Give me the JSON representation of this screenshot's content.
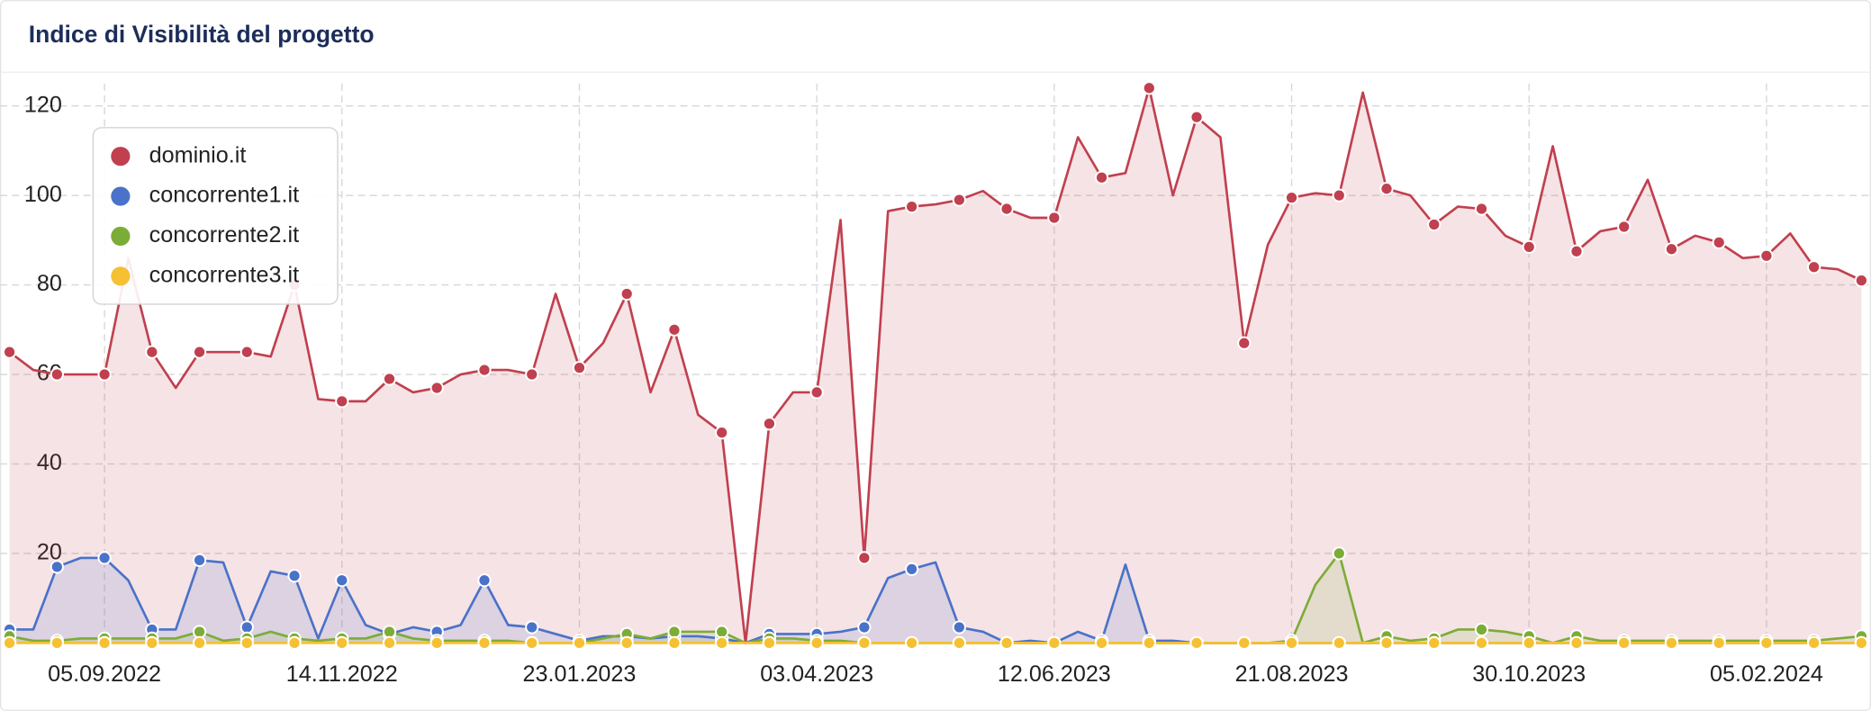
{
  "chart_data": {
    "type": "area-line",
    "title": "Indice di Visibilità del progetto",
    "categories": [
      null,
      null,
      null,
      null,
      "05.09.2022",
      null,
      null,
      null,
      null,
      null,
      null,
      null,
      null,
      null,
      "14.11.2022",
      null,
      null,
      null,
      null,
      null,
      null,
      null,
      null,
      null,
      "23.01.2023",
      null,
      null,
      null,
      null,
      null,
      null,
      null,
      null,
      null,
      "03.04.2023",
      null,
      null,
      null,
      null,
      null,
      null,
      null,
      null,
      null,
      "12.06.2023",
      null,
      null,
      null,
      null,
      null,
      null,
      null,
      null,
      null,
      "21.08.2023",
      null,
      null,
      null,
      null,
      null,
      null,
      null,
      null,
      null,
      "30.10.2023",
      null,
      null,
      null,
      null,
      null,
      null,
      null,
      null,
      null,
      "05.02.2024",
      null,
      null,
      null,
      null
    ],
    "series": [
      {
        "name": "dominio.it",
        "color": "#c0404f",
        "values": [
          65,
          61,
          60,
          60,
          60,
          86,
          65,
          57,
          65,
          65,
          65,
          64,
          80,
          54.5,
          54,
          54,
          59,
          56,
          57,
          60,
          61,
          61,
          60,
          78,
          61.5,
          67,
          78,
          56,
          70,
          51,
          47,
          0,
          49,
          56,
          56,
          94.5,
          19,
          96.5,
          97.5,
          98,
          99,
          101,
          97,
          95,
          95,
          113,
          104,
          105,
          124,
          100,
          117.5,
          113,
          67,
          89,
          99.5,
          100.5,
          100,
          123,
          101.5,
          100,
          93.5,
          97.5,
          97,
          91,
          88.5,
          111,
          87.5,
          92,
          93,
          103.5,
          88,
          91,
          89.5,
          86,
          86.5,
          91.5,
          84,
          83.5,
          81
        ]
      },
      {
        "name": "concorrente1.it",
        "color": "#4a72c8",
        "values": [
          3,
          3,
          17,
          19,
          19,
          14,
          3,
          3,
          18.5,
          18,
          3.5,
          16,
          15,
          1,
          14,
          4,
          2,
          3.5,
          2.5,
          4,
          14,
          4,
          3.5,
          2,
          0.5,
          1.5,
          1.5,
          1,
          1.5,
          1.5,
          1,
          0,
          2,
          2,
          2,
          2.5,
          3.5,
          14.5,
          16.5,
          18,
          3.5,
          2.5,
          0,
          0.5,
          0,
          2.5,
          0.5,
          17.5,
          0.5,
          0.5,
          0,
          0,
          0,
          0,
          0,
          0,
          0,
          0,
          0,
          0,
          0,
          0,
          0,
          0,
          0,
          0,
          0,
          0,
          0,
          0,
          0,
          0,
          0,
          0,
          0,
          0,
          0,
          0,
          0
        ]
      },
      {
        "name": "concorrente2.it",
        "color": "#7cac38",
        "values": [
          1.5,
          0.5,
          0.5,
          1,
          1,
          1,
          1,
          1,
          2.5,
          0.5,
          1,
          2.5,
          1,
          0.5,
          1,
          1,
          2.5,
          1,
          0.5,
          0.5,
          0.5,
          0.5,
          0,
          0,
          0,
          1,
          2,
          1,
          2.5,
          2.5,
          2.5,
          0,
          1,
          1,
          0.5,
          0.5,
          0,
          0,
          0,
          0,
          0,
          0,
          0,
          0,
          0,
          0,
          0,
          0,
          0,
          0,
          0,
          0,
          0,
          0,
          0.5,
          13,
          20,
          0,
          1.5,
          0.5,
          1,
          3,
          3,
          2.5,
          1.5,
          0,
          1.5,
          0.5,
          0.5,
          0.5,
          0.5,
          0.5,
          0.5,
          0.5,
          0.5,
          0.5,
          0.5,
          1,
          1.5
        ]
      },
      {
        "name": "concorrente3.it",
        "color": "#f5c033",
        "values": [
          0,
          0,
          0,
          0,
          0,
          0,
          0,
          0,
          0,
          0,
          0,
          0,
          0,
          0,
          0,
          0,
          0,
          0,
          0,
          0,
          0,
          0,
          0,
          0,
          0,
          0,
          0,
          0,
          0,
          0,
          0,
          0,
          0,
          0,
          0,
          0,
          0,
          0,
          0,
          0,
          0,
          0,
          0,
          0,
          0,
          0,
          0,
          0,
          0,
          0,
          0,
          0,
          0,
          0,
          0,
          0,
          0,
          0,
          0,
          0,
          0,
          0,
          0,
          0,
          0,
          0,
          0,
          0,
          0,
          0,
          0,
          0,
          0,
          0,
          0,
          0,
          0,
          0,
          0
        ]
      }
    ],
    "ylim": [
      0,
      125
    ],
    "yticks": [
      20,
      40,
      60,
      80,
      100,
      120
    ],
    "grid": true,
    "legend": "top-left"
  }
}
